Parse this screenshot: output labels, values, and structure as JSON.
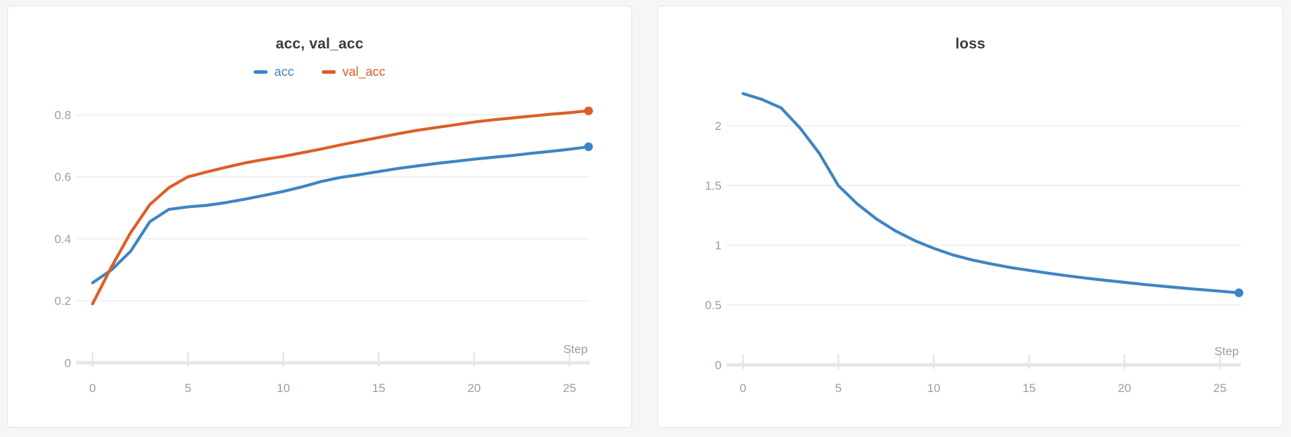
{
  "page": {
    "background": "#f5f6f8",
    "panel_background": "#ffffff",
    "panel_border": "#e2e3e5"
  },
  "colors": {
    "blue": "#3d85c4",
    "orange": "#dd5e27",
    "title_text": "#3a3a3a",
    "tick_text": "#9a9da1",
    "gridline": "#ececee",
    "axis_line": "#e6e6e8"
  },
  "chart_data": [
    {
      "type": "line",
      "title": "acc, val_acc",
      "xlabel": "Step",
      "legend_position": "top-center",
      "grid": true,
      "x": [
        0,
        1,
        2,
        3,
        4,
        5,
        6,
        7,
        8,
        9,
        10,
        11,
        12,
        13,
        14,
        15,
        16,
        17,
        18,
        19,
        20,
        21,
        22,
        23,
        24,
        25,
        26
      ],
      "x_ticks": [
        0,
        5,
        10,
        15,
        20,
        25
      ],
      "y_ticks": [
        0,
        0.2,
        0.4,
        0.6,
        0.8
      ],
      "xlim": [
        0,
        26
      ],
      "ylim": [
        0,
        0.88
      ],
      "series": [
        {
          "name": "acc",
          "color_key": "blue",
          "end_dot": true,
          "values": [
            0.258,
            0.3,
            0.36,
            0.455,
            0.495,
            0.503,
            0.508,
            0.517,
            0.528,
            0.54,
            0.553,
            0.568,
            0.585,
            0.598,
            0.607,
            0.617,
            0.627,
            0.635,
            0.643,
            0.65,
            0.657,
            0.663,
            0.669,
            0.676,
            0.682,
            0.689,
            0.697
          ]
        },
        {
          "name": "val_acc",
          "color_key": "orange",
          "end_dot": true,
          "values": [
            0.19,
            0.31,
            0.42,
            0.51,
            0.565,
            0.6,
            0.616,
            0.631,
            0.645,
            0.656,
            0.666,
            0.678,
            0.69,
            0.703,
            0.715,
            0.727,
            0.739,
            0.75,
            0.759,
            0.768,
            0.777,
            0.784,
            0.79,
            0.796,
            0.802,
            0.807,
            0.813
          ]
        }
      ]
    },
    {
      "type": "line",
      "title": "loss",
      "xlabel": "Step",
      "legend_position": "none",
      "grid": true,
      "x": [
        0,
        1,
        2,
        3,
        4,
        5,
        6,
        7,
        8,
        9,
        10,
        11,
        12,
        13,
        14,
        15,
        16,
        17,
        18,
        19,
        20,
        21,
        22,
        23,
        24,
        25,
        26
      ],
      "x_ticks": [
        0,
        5,
        10,
        15,
        20,
        25
      ],
      "y_ticks": [
        0,
        0.5,
        1,
        1.5,
        2
      ],
      "xlim": [
        0,
        26
      ],
      "ylim": [
        0,
        2.3
      ],
      "series": [
        {
          "name": "loss",
          "color_key": "blue",
          "end_dot": true,
          "values": [
            2.27,
            2.22,
            2.15,
            1.98,
            1.77,
            1.5,
            1.345,
            1.22,
            1.12,
            1.04,
            0.975,
            0.92,
            0.878,
            0.845,
            0.815,
            0.79,
            0.767,
            0.745,
            0.725,
            0.707,
            0.69,
            0.673,
            0.658,
            0.643,
            0.63,
            0.616,
            0.603
          ]
        }
      ]
    }
  ]
}
